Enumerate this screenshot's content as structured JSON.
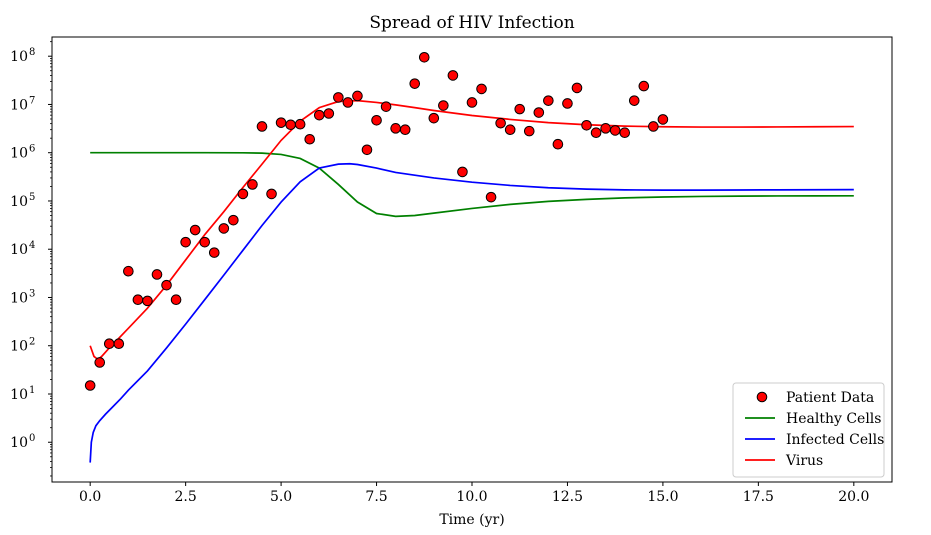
{
  "chart_data": {
    "type": "line",
    "title": "Spread of HIV Infection",
    "xlabel": "Time (yr)",
    "ylabel": "",
    "yscale": "log",
    "xlim": [
      -1.0,
      21.0
    ],
    "ylim": [
      0.15,
      250000000
    ],
    "xticks": [
      0.0,
      2.5,
      5.0,
      7.5,
      10.0,
      12.5,
      15.0,
      17.5,
      20.0
    ],
    "xtick_labels": [
      "0.0",
      "2.5",
      "5.0",
      "7.5",
      "10.0",
      "12.5",
      "15.0",
      "17.5",
      "20.0"
    ],
    "yticks": [
      {
        "base": "10",
        "exp": "0",
        "value": 1
      },
      {
        "base": "10",
        "exp": "1",
        "value": 10
      },
      {
        "base": "10",
        "exp": "2",
        "value": 100
      },
      {
        "base": "10",
        "exp": "3",
        "value": 1000
      },
      {
        "base": "10",
        "exp": "4",
        "value": 10000
      },
      {
        "base": "10",
        "exp": "5",
        "value": 100000
      },
      {
        "base": "10",
        "exp": "6",
        "value": 1000000
      },
      {
        "base": "10",
        "exp": "7",
        "value": 10000000
      },
      {
        "base": "10",
        "exp": "8",
        "value": 100000000
      }
    ],
    "grid": false,
    "legend_position": "lower-right",
    "scatter": {
      "name": "Patient Data",
      "color": "#ff0000",
      "edge_color": "#000000",
      "x": [
        0.0,
        0.25,
        0.5,
        0.75,
        1.0,
        1.25,
        1.5,
        1.75,
        2.0,
        2.25,
        2.5,
        2.75,
        3.0,
        3.25,
        3.5,
        3.75,
        4.0,
        4.25,
        4.5,
        4.75,
        5.0,
        5.25,
        5.5,
        5.75,
        6.0,
        6.25,
        6.5,
        6.75,
        7.0,
        7.25,
        7.5,
        7.75,
        8.0,
        8.25,
        8.5,
        8.75,
        9.0,
        9.25,
        9.5,
        9.75,
        10.0,
        10.25,
        10.5,
        10.75,
        11.0,
        11.25,
        11.5,
        11.75,
        12.0,
        12.25,
        12.5,
        12.75,
        13.0,
        13.25,
        13.5,
        13.75,
        14.0,
        14.25,
        14.5,
        14.75,
        15.0
      ],
      "y": [
        15,
        45,
        110,
        110,
        3500,
        900,
        850,
        3000,
        1800,
        900,
        14000,
        25000,
        14000,
        8500,
        27000,
        40000,
        140000,
        220000,
        3500000,
        140000,
        4200000,
        3800000,
        3900000,
        1900000,
        6000000,
        6500000,
        14000000,
        11000000,
        15000000,
        1150000,
        4700000,
        9000000,
        3200000,
        3000000,
        27000000,
        95000000,
        5200000,
        9500000,
        40000000,
        400000,
        11000000,
        21000000,
        120000,
        4100000,
        3000000,
        8000000,
        2800000,
        6800000,
        12000000,
        1500000,
        10500000,
        22000000,
        3700000,
        2600000,
        3200000,
        2900000,
        2600000,
        12000000,
        24000000,
        3500000,
        4900000
      ]
    },
    "series": [
      {
        "name": "Healthy Cells",
        "color": "#008000",
        "x": [
          0.0,
          1.0,
          2.0,
          3.0,
          4.0,
          4.5,
          5.0,
          5.5,
          6.0,
          6.5,
          7.0,
          7.5,
          8.0,
          8.5,
          9.0,
          10.0,
          11.0,
          12.0,
          13.0,
          14.0,
          15.0,
          16.0,
          17.0,
          18.0,
          19.0,
          20.0
        ],
        "values": [
          1000000,
          1000000,
          1000000,
          1000000,
          995000,
          980000,
          920000,
          760000,
          480000,
          220000,
          95000,
          55000,
          48000,
          50000,
          56000,
          70000,
          85000,
          98000,
          108000,
          116000,
          121000,
          124000,
          126000,
          127000,
          127500,
          128000
        ]
      },
      {
        "name": "Infected Cells",
        "color": "#0000ff",
        "x": [
          0.0,
          0.03,
          0.08,
          0.15,
          0.25,
          0.4,
          0.6,
          0.8,
          1.0,
          1.5,
          2.0,
          2.5,
          3.0,
          3.5,
          4.0,
          4.5,
          5.0,
          5.5,
          6.0,
          6.5,
          6.8,
          7.0,
          7.5,
          8.0,
          9.0,
          10.0,
          11.0,
          12.0,
          13.0,
          14.0,
          15.0,
          16.0,
          17.0,
          18.0,
          19.0,
          20.0
        ],
        "values": [
          0.38,
          1.0,
          1.6,
          2.2,
          2.8,
          3.8,
          5.5,
          8.0,
          12.0,
          30,
          90,
          280,
          900,
          2900,
          9500,
          31000,
          95000,
          250000,
          480000,
          580000,
          590000,
          570000,
          480000,
          390000,
          300000,
          245000,
          210000,
          188000,
          176000,
          170000,
          168000,
          168000,
          169000,
          170000,
          171000,
          172000
        ]
      },
      {
        "name": "Virus",
        "color": "#ff0000",
        "x": [
          0.0,
          0.1,
          0.2,
          0.3,
          0.5,
          0.7,
          1.0,
          1.5,
          2.0,
          2.5,
          3.0,
          3.5,
          4.0,
          4.5,
          5.0,
          5.5,
          6.0,
          6.5,
          7.0,
          7.5,
          8.0,
          8.5,
          9.0,
          10.0,
          11.0,
          12.0,
          13.0,
          14.0,
          15.0,
          16.0,
          17.0,
          18.0,
          19.0,
          20.0
        ],
        "values": [
          100,
          60,
          52,
          60,
          90,
          130,
          230,
          600,
          1800,
          6000,
          20000,
          60000,
          190000,
          580000,
          1800000,
          4500000,
          8600000,
          11500000,
          12000000,
          11000000,
          9800000,
          8600000,
          7500000,
          5900000,
          4900000,
          4200000,
          3800000,
          3550000,
          3450000,
          3400000,
          3400000,
          3420000,
          3450000,
          3480000
        ]
      }
    ]
  }
}
